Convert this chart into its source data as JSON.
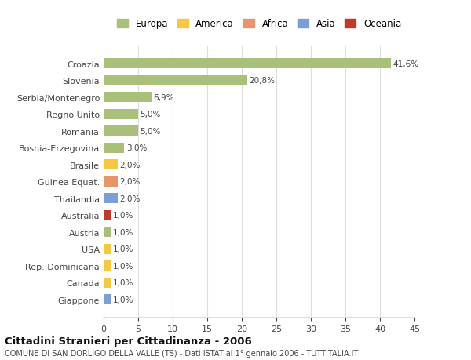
{
  "title": "Cittadini Stranieri per Cittadinanza - 2006",
  "subtitle": "COMUNE DI SAN DORLIGO DELLA VALLE (TS) - Dati ISTAT al 1° gennaio 2006 - TUTTITALIA.IT",
  "categories": [
    "Giappone",
    "Canada",
    "Rep. Dominicana",
    "USA",
    "Austria",
    "Australia",
    "Thailandia",
    "Guinea Equat.",
    "Brasile",
    "Bosnia-Erzegovina",
    "Romania",
    "Regno Unito",
    "Serbia/Montenegro",
    "Slovenia",
    "Croazia"
  ],
  "values": [
    1.0,
    1.0,
    1.0,
    1.0,
    1.0,
    1.0,
    2.0,
    2.0,
    2.0,
    3.0,
    5.0,
    5.0,
    6.9,
    20.8,
    41.6
  ],
  "labels": [
    "1,0%",
    "1,0%",
    "1,0%",
    "1,0%",
    "1,0%",
    "1,0%",
    "2,0%",
    "2,0%",
    "2,0%",
    "3,0%",
    "5,0%",
    "5,0%",
    "6,9%",
    "20,8%",
    "41,6%"
  ],
  "bar_colors": [
    "#7b9fd4",
    "#f5c842",
    "#f5c842",
    "#f5c842",
    "#a8c07a",
    "#c0392b",
    "#7b9fd4",
    "#e8956b",
    "#f5c842",
    "#a8c07a",
    "#a8c07a",
    "#a8c07a",
    "#a8c07a",
    "#a8c07a",
    "#a8c07a"
  ],
  "continent_colors": {
    "Europa": "#a8c07a",
    "America": "#f5c842",
    "Africa": "#e8956b",
    "Asia": "#7b9fd4",
    "Oceania": "#c0392b"
  },
  "xlim": [
    0,
    45
  ],
  "xticks": [
    0,
    5,
    10,
    15,
    20,
    25,
    30,
    35,
    40,
    45
  ],
  "background_color": "#ffffff",
  "grid_color": "#dddddd",
  "bar_height": 0.6
}
